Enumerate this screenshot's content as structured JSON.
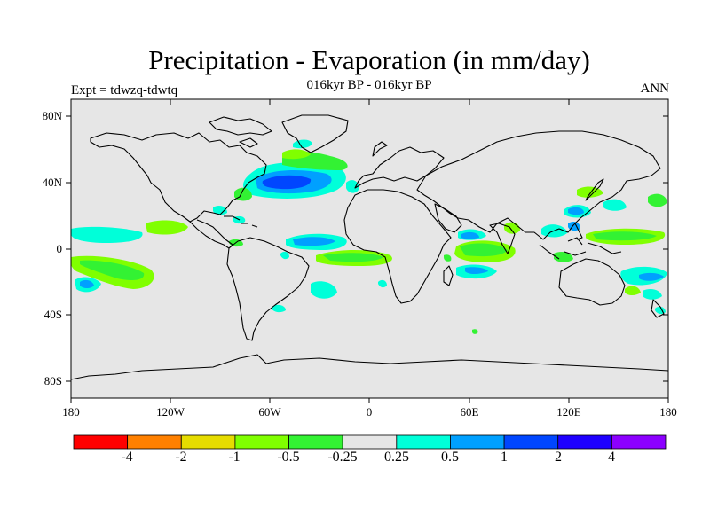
{
  "title": "Precipitation - Evaporation (in mm/day)",
  "subtitle": "016kyr BP - 016kyr BP",
  "experiment": "Expt = tdwzq-tdwtq",
  "season": "ANN",
  "axes": {
    "y_labels": [
      "80N",
      "40N",
      "0",
      "40S",
      "80S"
    ],
    "x_labels": [
      "180",
      "120W",
      "60W",
      "0",
      "60E",
      "120E",
      "180"
    ]
  },
  "colorbar": {
    "colors": [
      "#ff0000",
      "#ff8000",
      "#e6dc00",
      "#80ff00",
      "#33f233",
      "#e6e6e6",
      "#00ffd9",
      "#00a0ff",
      "#0046ff",
      "#1e00ff",
      "#8c00ff"
    ],
    "labels": [
      "-4",
      "-2",
      "-1",
      "-0.5",
      "-0.25",
      "0.25",
      "0.5",
      "1",
      "2",
      "4"
    ]
  },
  "chart_data": {
    "type": "heatmap",
    "title": "Precipitation - Evaporation (in mm/day)",
    "subtitle": "016kyr BP - 016kyr BP",
    "projection": "cylindrical equidistant",
    "xlim": [
      -180,
      180
    ],
    "ylim": [
      -90,
      90
    ],
    "levels": [
      -4,
      -2,
      -1,
      -0.5,
      -0.25,
      0.25,
      0.5,
      1,
      2,
      4
    ],
    "background_color": "#e6e6e6",
    "regions": [
      {
        "lon": -45,
        "lat": 38,
        "value": 2
      },
      {
        "lon": -60,
        "lat": 36,
        "value": 0.75
      },
      {
        "lon": -40,
        "lat": 46,
        "value": -0.5
      },
      {
        "lon": -37,
        "lat": 48,
        "value": -0.35
      },
      {
        "lon": -30,
        "lat": 43,
        "value": 0.4
      },
      {
        "lon": -68,
        "lat": 24,
        "value": 0.4
      },
      {
        "lon": -40,
        "lat": 2,
        "value": 0.75
      },
      {
        "lon": -20,
        "lat": -5,
        "value": -0.5
      },
      {
        "lon": -15,
        "lat": -6,
        "value": -0.35
      },
      {
        "lon": -30,
        "lat": -25,
        "value": 0.4
      },
      {
        "lon": 60,
        "lat": 2,
        "value": -0.5
      },
      {
        "lon": 62,
        "lat": 3,
        "value": -0.35
      },
      {
        "lon": 58,
        "lat": -10,
        "value": 0.4
      },
      {
        "lon": 60,
        "lat": 8,
        "value": 0.75
      },
      {
        "lon": 95,
        "lat": 10,
        "value": -0.35
      },
      {
        "lon": 120,
        "lat": 25,
        "value": 0.4
      },
      {
        "lon": 135,
        "lat": 2,
        "value": -0.35
      },
      {
        "lon": 150,
        "lat": -20,
        "value": 0.4
      },
      {
        "lon": -165,
        "lat": -12,
        "value": -0.5
      },
      {
        "lon": -155,
        "lat": -20,
        "value": 0.4
      },
      {
        "lon": -165,
        "lat": 8,
        "value": 0.4
      },
      {
        "lon": -125,
        "lat": 12,
        "value": -0.35
      },
      {
        "lon": 165,
        "lat": 28,
        "value": -0.35
      }
    ]
  }
}
